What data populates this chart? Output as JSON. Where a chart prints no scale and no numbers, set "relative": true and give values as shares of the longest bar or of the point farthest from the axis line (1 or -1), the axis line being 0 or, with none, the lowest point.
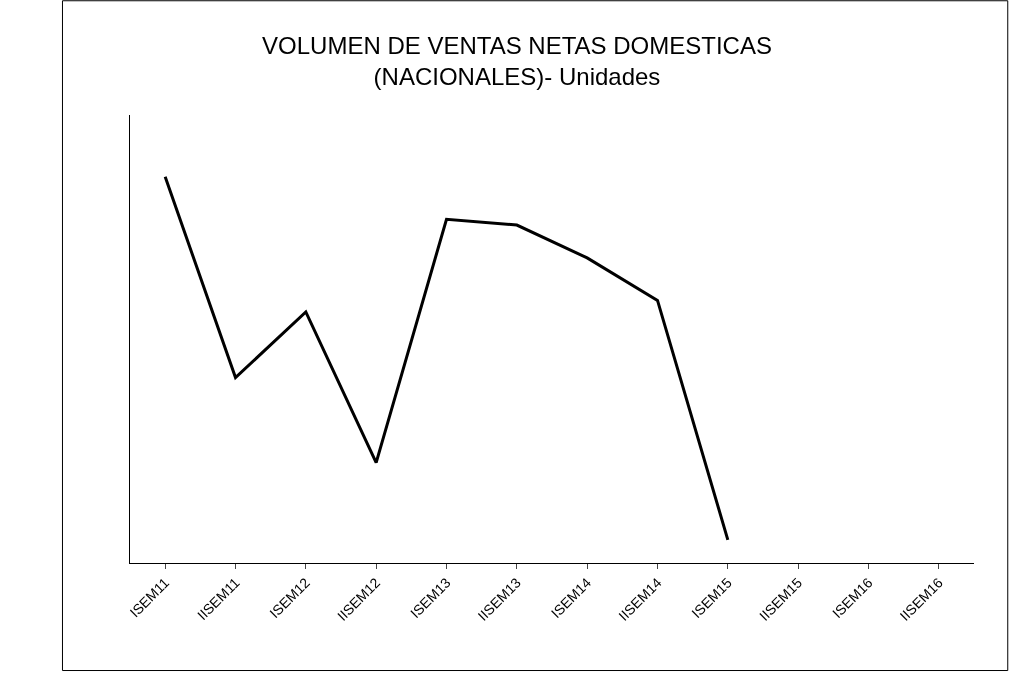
{
  "chart_data": {
    "type": "line",
    "title": "VOLUMEN DE VENTAS NETAS DOMESTICAS\n(NACIONALES)- Unidades",
    "relative": true,
    "categories": [
      "ISEM11",
      "IISEM11",
      "ISEM12",
      "IISEM12",
      "ISEM13",
      "IISEM13",
      "ISEM14",
      "IISEM14",
      "ISEM15",
      "IISEM15",
      "ISEM16",
      "IISEM16"
    ],
    "series": [
      {
        "color": "#000000",
        "values": [
          1,
          0.48,
          0.65,
          0.26,
          0.89,
          0.875,
          0.79,
          0.68,
          0.06,
          null,
          null,
          null
        ]
      }
    ],
    "legend": false,
    "marker": "none",
    "line_style": "solid"
  }
}
